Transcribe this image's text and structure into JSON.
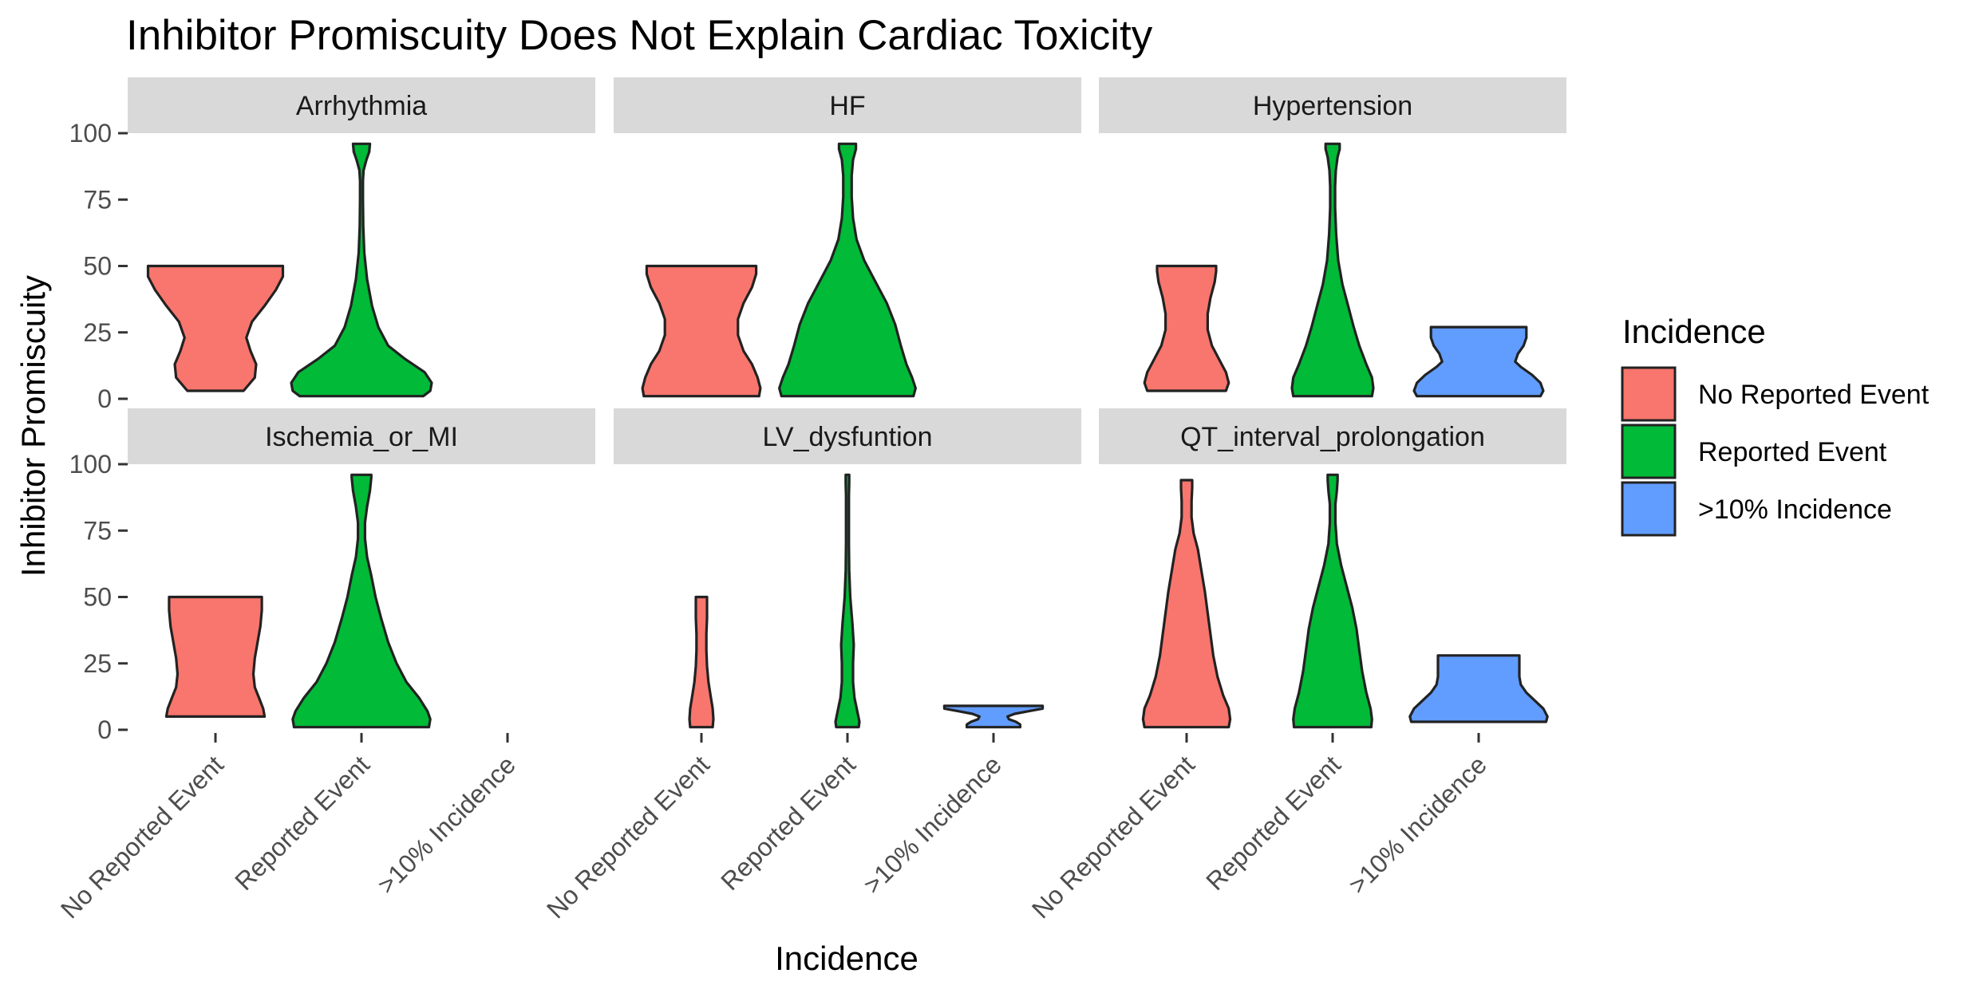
{
  "chart_data": {
    "type": "violin",
    "title": "Inhibitor Promiscuity Does Not Explain Cardiac Toxicity",
    "xlabel": "Incidence",
    "ylabel": "Inhibitor Promiscuity",
    "ylim": [
      0,
      100
    ],
    "y_ticks": [
      "0",
      "25",
      "50",
      "75",
      "100"
    ],
    "categories": [
      "No Reported Event",
      "Reported Event",
      ">10% Incidence"
    ],
    "facets": [
      "Arrhythmia",
      "HF",
      "Hypertension",
      "Ischemia_or_MI",
      "LV_dysfuntion",
      "QT_interval_prolongation"
    ],
    "legend": {
      "title": "Incidence",
      "position": "right",
      "entries": [
        {
          "label": "No Reported Event",
          "color": "#F8766D"
        },
        {
          "label": "Reported Event",
          "color": "#00BA38"
        },
        {
          "label": ">10% Incidence",
          "color": "#619CFF"
        }
      ]
    },
    "panels": [
      {
        "facet": "Arrhythmia",
        "violins": [
          {
            "category": "No Reported Event",
            "range": [
              3,
              50
            ],
            "profile": [
              [
                3,
                0.4
              ],
              [
                8,
                0.56
              ],
              [
                13,
                0.58
              ],
              [
                18,
                0.5
              ],
              [
                23,
                0.44
              ],
              [
                29,
                0.52
              ],
              [
                35,
                0.7
              ],
              [
                41,
                0.86
              ],
              [
                46,
                0.96
              ],
              [
                50,
                0.96
              ]
            ]
          },
          {
            "category": "Reported Event",
            "range": [
              1,
              96
            ],
            "profile": [
              [
                1,
                0.88
              ],
              [
                3,
                0.98
              ],
              [
                6,
                1.0
              ],
              [
                10,
                0.9
              ],
              [
                15,
                0.62
              ],
              [
                20,
                0.38
              ],
              [
                27,
                0.24
              ],
              [
                35,
                0.15
              ],
              [
                45,
                0.08
              ],
              [
                55,
                0.04
              ],
              [
                65,
                0.025
              ],
              [
                75,
                0.02
              ],
              [
                82,
                0.02
              ],
              [
                86,
                0.03
              ],
              [
                90,
                0.07
              ],
              [
                93,
                0.11
              ],
              [
                96,
                0.12
              ]
            ]
          }
        ]
      },
      {
        "facet": "HF",
        "violins": [
          {
            "category": "No Reported Event",
            "range": [
              1,
              50
            ],
            "profile": [
              [
                1,
                0.82
              ],
              [
                4,
                0.84
              ],
              [
                8,
                0.8
              ],
              [
                13,
                0.72
              ],
              [
                18,
                0.6
              ],
              [
                24,
                0.52
              ],
              [
                30,
                0.52
              ],
              [
                36,
                0.6
              ],
              [
                42,
                0.72
              ],
              [
                47,
                0.78
              ],
              [
                50,
                0.78
              ]
            ]
          },
          {
            "category": "Reported Event",
            "range": [
              1,
              96
            ],
            "profile": [
              [
                1,
                0.94
              ],
              [
                4,
                0.97
              ],
              [
                8,
                0.92
              ],
              [
                13,
                0.84
              ],
              [
                20,
                0.76
              ],
              [
                28,
                0.68
              ],
              [
                36,
                0.56
              ],
              [
                44,
                0.4
              ],
              [
                52,
                0.24
              ],
              [
                60,
                0.13
              ],
              [
                68,
                0.08
              ],
              [
                76,
                0.06
              ],
              [
                84,
                0.06
              ],
              [
                90,
                0.08
              ],
              [
                94,
                0.12
              ],
              [
                96,
                0.12
              ]
            ]
          }
        ]
      },
      {
        "facet": "Hypertension",
        "violins": [
          {
            "category": "No Reported Event",
            "range": [
              3,
              50
            ],
            "profile": [
              [
                3,
                0.56
              ],
              [
                6,
                0.6
              ],
              [
                10,
                0.56
              ],
              [
                15,
                0.46
              ],
              [
                20,
                0.36
              ],
              [
                26,
                0.3
              ],
              [
                32,
                0.3
              ],
              [
                38,
                0.34
              ],
              [
                44,
                0.4
              ],
              [
                48,
                0.42
              ],
              [
                50,
                0.42
              ]
            ]
          },
          {
            "category": "Reported Event",
            "range": [
              1,
              96
            ],
            "profile": [
              [
                1,
                0.56
              ],
              [
                4,
                0.58
              ],
              [
                8,
                0.56
              ],
              [
                13,
                0.48
              ],
              [
                20,
                0.38
              ],
              [
                27,
                0.3
              ],
              [
                35,
                0.22
              ],
              [
                43,
                0.14
              ],
              [
                52,
                0.08
              ],
              [
                62,
                0.05
              ],
              [
                72,
                0.035
              ],
              [
                80,
                0.035
              ],
              [
                86,
                0.045
              ],
              [
                91,
                0.07
              ],
              [
                94,
                0.1
              ],
              [
                96,
                0.1
              ]
            ]
          },
          {
            "category": ">10% Incidence",
            "range": [
              1,
              27
            ],
            "profile": [
              [
                1,
                0.88
              ],
              [
                3,
                0.92
              ],
              [
                6,
                0.88
              ],
              [
                9,
                0.76
              ],
              [
                12,
                0.6
              ],
              [
                14,
                0.52
              ],
              [
                17,
                0.56
              ],
              [
                20,
                0.64
              ],
              [
                23,
                0.68
              ],
              [
                26,
                0.68
              ],
              [
                27,
                0.68
              ]
            ]
          }
        ]
      },
      {
        "facet": "Ischemia_or_MI",
        "violins": [
          {
            "category": "No Reported Event",
            "range": [
              5,
              50
            ],
            "profile": [
              [
                5,
                0.7
              ],
              [
                8,
                0.68
              ],
              [
                12,
                0.62
              ],
              [
                16,
                0.56
              ],
              [
                21,
                0.54
              ],
              [
                27,
                0.56
              ],
              [
                33,
                0.6
              ],
              [
                39,
                0.64
              ],
              [
                45,
                0.66
              ],
              [
                50,
                0.66
              ]
            ]
          },
          {
            "category": "Reported Event",
            "range": [
              1,
              96
            ],
            "profile": [
              [
                1,
                0.96
              ],
              [
                4,
                0.98
              ],
              [
                7,
                0.94
              ],
              [
                12,
                0.82
              ],
              [
                18,
                0.64
              ],
              [
                25,
                0.5
              ],
              [
                33,
                0.38
              ],
              [
                42,
                0.28
              ],
              [
                50,
                0.2
              ],
              [
                58,
                0.14
              ],
              [
                65,
                0.08
              ],
              [
                72,
                0.05
              ],
              [
                78,
                0.05
              ],
              [
                84,
                0.08
              ],
              [
                90,
                0.12
              ],
              [
                95,
                0.14
              ],
              [
                96,
                0.14
              ]
            ]
          }
        ]
      },
      {
        "facet": "LV_dysfuntion",
        "violins": [
          {
            "category": "No Reported Event",
            "range": [
              1,
              50
            ],
            "profile": [
              [
                1,
                0.16
              ],
              [
                4,
                0.17
              ],
              [
                8,
                0.16
              ],
              [
                13,
                0.13
              ],
              [
                18,
                0.1
              ],
              [
                24,
                0.08
              ],
              [
                30,
                0.07
              ],
              [
                36,
                0.07
              ],
              [
                42,
                0.08
              ],
              [
                48,
                0.08
              ],
              [
                50,
                0.08
              ]
            ]
          },
          {
            "category": "Reported Event",
            "range": [
              1,
              96
            ],
            "profile": [
              [
                1,
                0.16
              ],
              [
                3,
                0.17
              ],
              [
                7,
                0.14
              ],
              [
                12,
                0.1
              ],
              [
                18,
                0.08
              ],
              [
                25,
                0.08
              ],
              [
                32,
                0.09
              ],
              [
                40,
                0.07
              ],
              [
                50,
                0.04
              ],
              [
                60,
                0.025
              ],
              [
                70,
                0.02
              ],
              [
                80,
                0.02
              ],
              [
                88,
                0.02
              ],
              [
                93,
                0.025
              ],
              [
                96,
                0.025
              ]
            ]
          },
          {
            "category": ">10% Incidence",
            "range": [
              1,
              9
            ],
            "profile": [
              [
                1,
                0.38
              ],
              [
                2,
                0.38
              ],
              [
                3,
                0.32
              ],
              [
                4,
                0.22
              ],
              [
                5,
                0.2
              ],
              [
                6,
                0.3
              ],
              [
                7,
                0.5
              ],
              [
                8,
                0.7
              ],
              [
                9,
                0.7
              ]
            ]
          }
        ]
      },
      {
        "facet": "QT_interval_prolongation",
        "violins": [
          {
            "category": "No Reported Event",
            "range": [
              1,
              94
            ],
            "profile": [
              [
                1,
                0.6
              ],
              [
                4,
                0.62
              ],
              [
                8,
                0.6
              ],
              [
                13,
                0.52
              ],
              [
                20,
                0.44
              ],
              [
                28,
                0.38
              ],
              [
                36,
                0.34
              ],
              [
                44,
                0.3
              ],
              [
                52,
                0.26
              ],
              [
                60,
                0.21
              ],
              [
                68,
                0.16
              ],
              [
                74,
                0.1
              ],
              [
                80,
                0.07
              ],
              [
                86,
                0.07
              ],
              [
                91,
                0.08
              ],
              [
                94,
                0.08
              ]
            ]
          },
          {
            "category": "Reported Event",
            "range": [
              1,
              96
            ],
            "profile": [
              [
                1,
                0.55
              ],
              [
                4,
                0.56
              ],
              [
                8,
                0.54
              ],
              [
                14,
                0.48
              ],
              [
                22,
                0.42
              ],
              [
                30,
                0.38
              ],
              [
                38,
                0.34
              ],
              [
                46,
                0.28
              ],
              [
                54,
                0.2
              ],
              [
                62,
                0.12
              ],
              [
                70,
                0.06
              ],
              [
                78,
                0.04
              ],
              [
                85,
                0.04
              ],
              [
                90,
                0.06
              ],
              [
                94,
                0.07
              ],
              [
                96,
                0.07
              ]
            ]
          },
          {
            "category": ">10% Incidence",
            "range": [
              3,
              28
            ],
            "profile": [
              [
                3,
                0.96
              ],
              [
                5,
                0.98
              ],
              [
                8,
                0.92
              ],
              [
                11,
                0.8
              ],
              [
                14,
                0.68
              ],
              [
                17,
                0.6
              ],
              [
                20,
                0.58
              ],
              [
                23,
                0.58
              ],
              [
                26,
                0.58
              ],
              [
                28,
                0.58
              ]
            ]
          }
        ]
      }
    ]
  }
}
